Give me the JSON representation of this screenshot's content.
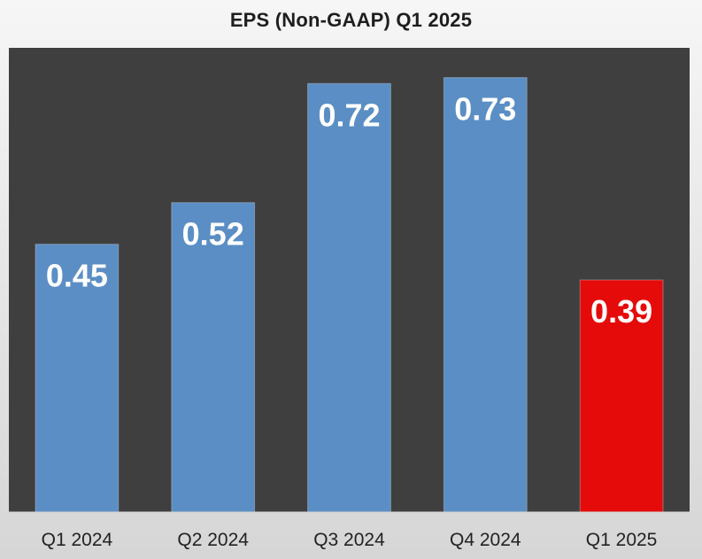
{
  "chart_data": {
    "type": "bar",
    "title": "EPS (Non-GAAP) Q1 2025",
    "xlabel": "",
    "ylabel": "",
    "categories": [
      "Q1 2024",
      "Q2 2024",
      "Q3 2024",
      "Q4 2024",
      "Q1 2025"
    ],
    "values": [
      0.45,
      0.52,
      0.72,
      0.73,
      0.39
    ],
    "value_labels": [
      "0.45",
      "0.52",
      "0.72",
      "0.73",
      "0.39"
    ],
    "ylim": [
      0,
      0.78
    ],
    "grid": false,
    "legend": "none",
    "plot_background": "#3f3f3f",
    "bar_colors": [
      "#5b8ec4",
      "#5b8ec4",
      "#5b8ec4",
      "#5b8ec4",
      "#e50b0b"
    ]
  }
}
